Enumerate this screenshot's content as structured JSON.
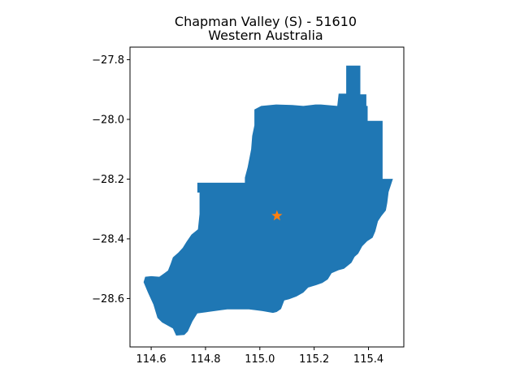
{
  "figure": {
    "title_line1": "Chapman Valley (S) - 51610",
    "title_line2": "Western Australia"
  },
  "chart_data": {
    "type": "map",
    "title": "Chapman Valley (S) - 51610\nWestern Australia",
    "xlim": [
      114.522,
      115.53
    ],
    "ylim": [
      -28.762,
      -27.758
    ],
    "x_ticks": [
      114.6,
      114.8,
      115.0,
      115.2,
      115.4
    ],
    "x_tick_labels": [
      "114.6",
      "114.8",
      "115.0",
      "115.2",
      "115.4"
    ],
    "y_ticks": [
      -27.8,
      -28.0,
      -28.2,
      -28.4,
      -28.6
    ],
    "y_tick_labels": [
      "−27.8",
      "−28.0",
      "−28.2",
      "−28.4",
      "−28.6"
    ],
    "grid": false,
    "region": {
      "name": "Chapman Valley (S)",
      "fill_color": "#1f77b4",
      "boundary": [
        [
          115.318,
          -27.82
        ],
        [
          115.37,
          -27.82
        ],
        [
          115.37,
          -27.916
        ],
        [
          115.392,
          -27.916
        ],
        [
          115.392,
          -27.955
        ],
        [
          115.397,
          -27.955
        ],
        [
          115.397,
          -28.005
        ],
        [
          115.452,
          -28.005
        ],
        [
          115.452,
          -28.199
        ],
        [
          115.49,
          -28.199
        ],
        [
          115.474,
          -28.243
        ],
        [
          115.469,
          -28.28
        ],
        [
          115.464,
          -28.305
        ],
        [
          115.447,
          -28.324
        ],
        [
          115.435,
          -28.341
        ],
        [
          115.425,
          -28.375
        ],
        [
          115.415,
          -28.396
        ],
        [
          115.395,
          -28.408
        ],
        [
          115.377,
          -28.425
        ],
        [
          115.362,
          -28.45
        ],
        [
          115.349,
          -28.46
        ],
        [
          115.337,
          -28.48
        ],
        [
          115.31,
          -28.5
        ],
        [
          115.29,
          -28.505
        ],
        [
          115.264,
          -28.515
        ],
        [
          115.25,
          -28.536
        ],
        [
          115.23,
          -28.548
        ],
        [
          115.208,
          -28.555
        ],
        [
          115.178,
          -28.563
        ],
        [
          115.16,
          -28.58
        ],
        [
          115.135,
          -28.593
        ],
        [
          115.108,
          -28.602
        ],
        [
          115.09,
          -28.606
        ],
        [
          115.078,
          -28.635
        ],
        [
          115.062,
          -28.645
        ],
        [
          115.048,
          -28.648
        ],
        [
          115.01,
          -28.642
        ],
        [
          114.96,
          -28.636
        ],
        [
          114.88,
          -28.636
        ],
        [
          114.808,
          -28.645
        ],
        [
          114.77,
          -28.65
        ],
        [
          114.752,
          -28.676
        ],
        [
          114.735,
          -28.71
        ],
        [
          114.722,
          -28.722
        ],
        [
          114.692,
          -28.724
        ],
        [
          114.68,
          -28.7
        ],
        [
          114.64,
          -28.68
        ],
        [
          114.623,
          -28.665
        ],
        [
          114.608,
          -28.62
        ],
        [
          114.588,
          -28.58
        ],
        [
          114.572,
          -28.545
        ],
        [
          114.578,
          -28.527
        ],
        [
          114.6,
          -28.525
        ],
        [
          114.63,
          -28.527
        ],
        [
          114.65,
          -28.514
        ],
        [
          114.662,
          -28.506
        ],
        [
          114.672,
          -28.483
        ],
        [
          114.68,
          -28.462
        ],
        [
          114.7,
          -28.446
        ],
        [
          114.716,
          -28.43
        ],
        [
          114.73,
          -28.41
        ],
        [
          114.748,
          -28.386
        ],
        [
          114.772,
          -28.368
        ],
        [
          114.778,
          -28.317
        ],
        [
          114.778,
          -28.245
        ],
        [
          114.77,
          -28.245
        ],
        [
          114.77,
          -28.212
        ],
        [
          114.945,
          -28.212
        ],
        [
          114.945,
          -28.195
        ],
        [
          114.955,
          -28.16
        ],
        [
          114.968,
          -28.1
        ],
        [
          114.972,
          -28.055
        ],
        [
          114.98,
          -28.02
        ],
        [
          114.98,
          -27.967
        ],
        [
          115.005,
          -27.955
        ],
        [
          115.06,
          -27.95
        ],
        [
          115.12,
          -27.952
        ],
        [
          115.16,
          -27.955
        ],
        [
          115.205,
          -27.95
        ],
        [
          115.225,
          -27.95
        ],
        [
          115.285,
          -27.955
        ],
        [
          115.29,
          -27.914
        ],
        [
          115.318,
          -27.914
        ],
        [
          115.318,
          -27.82
        ]
      ]
    },
    "marker": {
      "symbol": "star",
      "color": "#ff7f0e",
      "x": 115.063,
      "y": -28.323
    }
  }
}
